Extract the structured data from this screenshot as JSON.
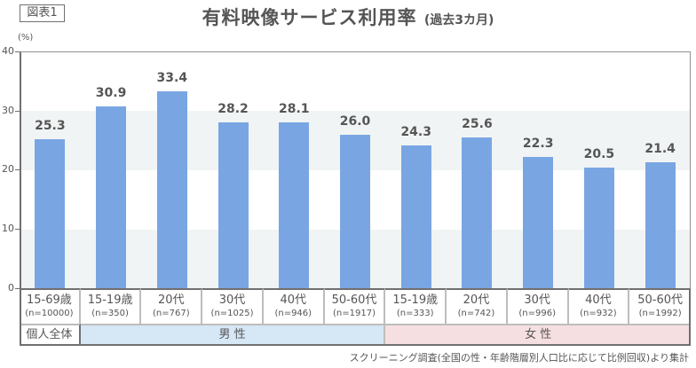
{
  "figure_label": "図表1",
  "title": {
    "main": "有料映像サービス利用率",
    "sub": "(過去3カ月)"
  },
  "y_axis": {
    "unit": "(%)",
    "ticks": [
      "40",
      "30",
      "20",
      "10",
      "0"
    ]
  },
  "colors": {
    "bar": "#79a6e3",
    "band": "#f1f4f4",
    "male_group": "#d6e7f5",
    "female_group": "#f6dfe1",
    "text": "#555555"
  },
  "columns": [
    {
      "label": "15-69歳",
      "n": "(n=10000)",
      "value": "25.3"
    },
    {
      "label": "15-19歳",
      "n": "(n=350)",
      "value": "30.9"
    },
    {
      "label": "20代",
      "n": "(n=767)",
      "value": "33.4"
    },
    {
      "label": "30代",
      "n": "(n=1025)",
      "value": "28.2"
    },
    {
      "label": "40代",
      "n": "(n=946)",
      "value": "28.1"
    },
    {
      "label": "50-60代",
      "n": "(n=1917)",
      "value": "26.0"
    },
    {
      "label": "15-19歳",
      "n": "(n=333)",
      "value": "24.3"
    },
    {
      "label": "20代",
      "n": "(n=742)",
      "value": "25.6"
    },
    {
      "label": "30代",
      "n": "(n=996)",
      "value": "22.3"
    },
    {
      "label": "40代",
      "n": "(n=932)",
      "value": "20.5"
    },
    {
      "label": "50-60代",
      "n": "(n=1992)",
      "value": "21.4"
    }
  ],
  "groups": [
    {
      "label": "個人全体",
      "span": 1
    },
    {
      "label": "男 性",
      "span": 5
    },
    {
      "label": "女 性",
      "span": 5
    }
  ],
  "footnote": "スクリーニング調査(全国の性・年齢階層別人口比に応じて比例回収)より集計",
  "chart_data": {
    "type": "bar",
    "title": "有料映像サービス利用率 (過去3カ月)",
    "xlabel": "",
    "ylabel": "(%)",
    "ylim": [
      0,
      40
    ],
    "yticks": [
      0,
      10,
      20,
      30,
      40
    ],
    "grid": "alternating horizontal bands",
    "legend": null,
    "categories": [
      "個人全体 15-69歳 (n=10000)",
      "男性 15-19歳 (n=350)",
      "男性 20代 (n=767)",
      "男性 30代 (n=1025)",
      "男性 40代 (n=946)",
      "男性 50-60代 (n=1917)",
      "女性 15-19歳 (n=333)",
      "女性 20代 (n=742)",
      "女性 30代 (n=996)",
      "女性 40代 (n=932)",
      "女性 50-60代 (n=1992)"
    ],
    "values": [
      25.3,
      30.9,
      33.4,
      28.2,
      28.1,
      26.0,
      24.3,
      25.6,
      22.3,
      20.5,
      21.4
    ],
    "groups": {
      "個人全体": [
        0
      ],
      "男性": [
        1,
        2,
        3,
        4,
        5
      ],
      "女性": [
        6,
        7,
        8,
        9,
        10
      ]
    },
    "source_note": "スクリーニング調査(全国の性・年齢階層別人口比に応じて比例回収)より集計"
  }
}
